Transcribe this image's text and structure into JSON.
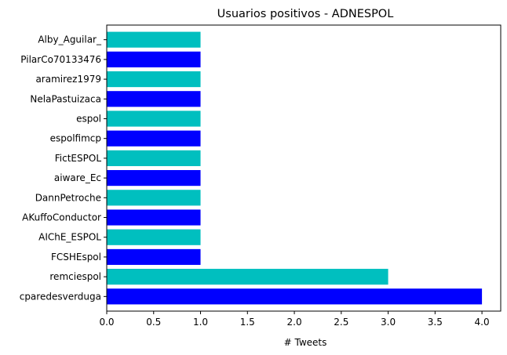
{
  "chart_data": {
    "type": "bar",
    "orientation": "horizontal",
    "title": "Usuarios positivos - ADNESPOL",
    "xlabel": "# Tweets",
    "ylabel": "",
    "categories": [
      "cparedesverduga",
      "remciespol",
      "FCSHEspol",
      "AIChE_ESPOL",
      "AKuffoConductor",
      "DannPetroche",
      "aiware_Ec",
      "FictESPOL",
      "espolfimcp",
      "espol",
      "NelaPastuizaca",
      "aramirez1979",
      "PilarCo70133476",
      "Alby_Aguilar_"
    ],
    "values": [
      4,
      3,
      1,
      1,
      1,
      1,
      1,
      1,
      1,
      1,
      1,
      1,
      1,
      1
    ],
    "xlim": [
      0,
      4.2
    ],
    "xticks": [
      "0.0",
      "0.5",
      "1.0",
      "1.5",
      "2.0",
      "2.5",
      "3.0",
      "3.5",
      "4.0"
    ],
    "colors": [
      "#0000ff",
      "#00bfbf"
    ],
    "grid": false,
    "legend": "none"
  }
}
